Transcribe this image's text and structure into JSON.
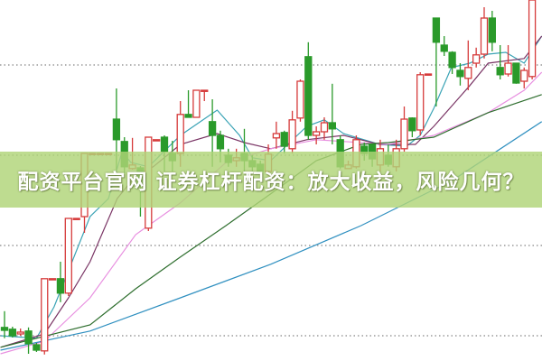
{
  "banner": {
    "title": "配资平台官网 证券杠杆配资：放大收益，风险几何？",
    "background": "#b0d478"
  },
  "chart_data": {
    "type": "candlestick",
    "title": "",
    "xlabel": "",
    "ylabel": "",
    "note_scale": "relative price, no axis printed",
    "ylim": [
      0,
      100
    ],
    "grid": true,
    "gridlines": [
      82,
      57,
      32,
      7
    ],
    "colors": {
      "up": "#d63a3a",
      "down": "#2a9a2a",
      "grid": "#9a9a9a"
    },
    "candles": [
      [
        9.3,
        13.8,
        6.3,
        8.5
      ],
      [
        8.8,
        9.5,
        6.5,
        7
      ],
      [
        7.5,
        9,
        7,
        8
      ],
      [
        8.3,
        9.3,
        2,
        4.8
      ],
      [
        4.5,
        5,
        2.5,
        3
      ],
      [
        2.8,
        22.8,
        1.8,
        22.8
      ],
      [
        22.8,
        22.8,
        22.8,
        22.8
      ],
      [
        22.8,
        27.5,
        16.3,
        18.8
      ],
      [
        18.8,
        39.5,
        18,
        39.5
      ],
      [
        39.5,
        39.5,
        39.5,
        39.5
      ],
      [
        40,
        57.5,
        35.5,
        57.5
      ],
      [
        57.5,
        57.5,
        57.5,
        57.5
      ],
      [
        57.5,
        57.5,
        57.5,
        57.5
      ],
      [
        57.5,
        57.5,
        57.5,
        57.5
      ],
      [
        67,
        75.5,
        53,
        61.3
      ],
      [
        60.8,
        62,
        52,
        53.8
      ],
      [
        53.3,
        61.8,
        53,
        54.3
      ],
      [
        53.5,
        54,
        40,
        48.8
      ],
      [
        36.8,
        62,
        36,
        62
      ],
      [
        61.3,
        61.3,
        61.3,
        61.3
      ],
      [
        62,
        62.5,
        52.5,
        58
      ],
      [
        57.5,
        61,
        52.5,
        55.5
      ],
      [
        57.5,
        72,
        53.8,
        68.3
      ],
      [
        68.3,
        75,
        67.5,
        67.5
      ],
      [
        67.5,
        75,
        67.5,
        75
      ],
      [
        75,
        75,
        72,
        75
      ],
      [
        66.3,
        72.5,
        53.8,
        62.5
      ],
      [
        62.5,
        63.8,
        55,
        58.8
      ],
      [
        57,
        58.8,
        53.8,
        55
      ],
      [
        55.5,
        58.8,
        53.8,
        56.3
      ],
      [
        57.5,
        64.3,
        52.5,
        55.5
      ],
      [
        55.5,
        57,
        52,
        53.8
      ],
      [
        54.5,
        55.5,
        51,
        52.5
      ],
      [
        52.5,
        60,
        51.3,
        57.3
      ],
      [
        61.8,
        66.3,
        58.8,
        63
      ],
      [
        63.3,
        63.8,
        57.5,
        59.5
      ],
      [
        58.8,
        69.3,
        57.5,
        66.8
      ],
      [
        67.3,
        78,
        66.3,
        77.5
      ],
      [
        84.3,
        88.3,
        61.3,
        62.5
      ],
      [
        62.5,
        65,
        60,
        63.5
      ],
      [
        63.5,
        67.5,
        61.3,
        66
      ],
      [
        66,
        76.8,
        60,
        64.3
      ],
      [
        61.3,
        62.5,
        53.3,
        53.8
      ],
      [
        53.3,
        55.5,
        53.3,
        54.3
      ],
      [
        53.8,
        62.5,
        53.3,
        61.3
      ],
      [
        59.5,
        60.5,
        55.5,
        57.5
      ],
      [
        60,
        60,
        53.8,
        56
      ],
      [
        54.3,
        61.3,
        52.5,
        58.8
      ],
      [
        57,
        60,
        53.8,
        54.5
      ],
      [
        53.8,
        61.3,
        52.5,
        58.8
      ],
      [
        58.8,
        70.5,
        58,
        67
      ],
      [
        67.3,
        67.5,
        62,
        63.8
      ],
      [
        64,
        80,
        62.5,
        79.3
      ],
      [
        79.5,
        79.5,
        79.5,
        79.5
      ],
      [
        95,
        95,
        70.5,
        88.3
      ],
      [
        87.5,
        90,
        84.5,
        85.8
      ],
      [
        85.5,
        85.8,
        79.5,
        81.3
      ],
      [
        80.5,
        82.5,
        76.3,
        78.8
      ],
      [
        78.3,
        88.8,
        75,
        81.3
      ],
      [
        82.5,
        86.8,
        81.3,
        84.8
      ],
      [
        85,
        98,
        83.8,
        95
      ],
      [
        95,
        97,
        85.8,
        88.3
      ],
      [
        81.3,
        87.5,
        78,
        79.3
      ],
      [
        79.5,
        87.5,
        78.8,
        82.5
      ],
      [
        82.5,
        82.5,
        76.8,
        77
      ],
      [
        77.5,
        81.3,
        75.5,
        80.5
      ],
      [
        78.8,
        100,
        78,
        100
      ]
    ],
    "candle_fields": [
      "open",
      "high",
      "low",
      "close"
    ],
    "lines": [
      {
        "color": "#3aa3b5",
        "points": [
          [
            -0.5,
            7
          ],
          [
            4,
            6.3
          ],
          [
            6.2,
            15
          ],
          [
            10.7,
            40
          ],
          [
            13,
            45
          ],
          [
            14.7,
            58
          ],
          [
            15.8,
            55
          ],
          [
            18,
            53.8
          ],
          [
            22,
            62.5
          ],
          [
            26.6,
            69.5
          ],
          [
            29.4,
            62.5
          ],
          [
            31,
            56.3
          ],
          [
            33.3,
            55.5
          ],
          [
            37.8,
            65
          ],
          [
            40,
            66.8
          ],
          [
            42.4,
            63
          ],
          [
            46.9,
            60
          ],
          [
            50.3,
            59.5
          ],
          [
            52,
            62.5
          ],
          [
            53.7,
            70
          ],
          [
            55.9,
            81.3
          ],
          [
            58.2,
            82.5
          ],
          [
            60.5,
            85
          ],
          [
            62.7,
            85.5
          ],
          [
            65,
            82.5
          ],
          [
            67.2,
            90
          ]
        ]
      },
      {
        "color": "#7a3565",
        "points": [
          [
            -0.5,
            3.8
          ],
          [
            5,
            7.5
          ],
          [
            8,
            17.5
          ],
          [
            10.7,
            27.5
          ],
          [
            14.1,
            45
          ],
          [
            16.4,
            51.3
          ],
          [
            18.6,
            53.8
          ],
          [
            22,
            60
          ],
          [
            26.6,
            63
          ],
          [
            30,
            60.5
          ],
          [
            33.3,
            58.8
          ],
          [
            37.8,
            61.3
          ],
          [
            42.4,
            62.5
          ],
          [
            46.9,
            60
          ],
          [
            51.4,
            60
          ],
          [
            53.7,
            65
          ],
          [
            58.2,
            76.3
          ],
          [
            60.5,
            82.5
          ],
          [
            65,
            83.8
          ],
          [
            67.2,
            90
          ]
        ]
      },
      {
        "color": "#e890e0",
        "points": [
          [
            -0.5,
            2
          ],
          [
            5,
            5.5
          ],
          [
            10.7,
            17.5
          ],
          [
            16.4,
            35
          ],
          [
            22,
            43.8
          ],
          [
            27.7,
            55
          ],
          [
            33.3,
            58.8
          ],
          [
            39,
            61.3
          ],
          [
            48,
            60
          ],
          [
            53.7,
            62.5
          ],
          [
            60.5,
            68.8
          ],
          [
            65,
            75
          ],
          [
            67.2,
            80
          ]
        ]
      },
      {
        "color": "#2e6e2e",
        "points": [
          [
            -0.5,
            3.8
          ],
          [
            10.7,
            10
          ],
          [
            16.4,
            20
          ],
          [
            22,
            28.8
          ],
          [
            27.7,
            37.5
          ],
          [
            33.3,
            46.3
          ],
          [
            39,
            55.5
          ],
          [
            44.6,
            60
          ],
          [
            48,
            60.5
          ],
          [
            53.7,
            62
          ],
          [
            60.5,
            68.8
          ],
          [
            67.2,
            73.8
          ]
        ]
      },
      {
        "color": "#3090c0",
        "points": [
          [
            -0.5,
            3
          ],
          [
            10.7,
            8.3
          ],
          [
            22,
            17.5
          ],
          [
            33.3,
            26.8
          ],
          [
            44.6,
            37.5
          ],
          [
            56,
            50
          ],
          [
            67.2,
            66.3
          ]
        ]
      }
    ]
  }
}
